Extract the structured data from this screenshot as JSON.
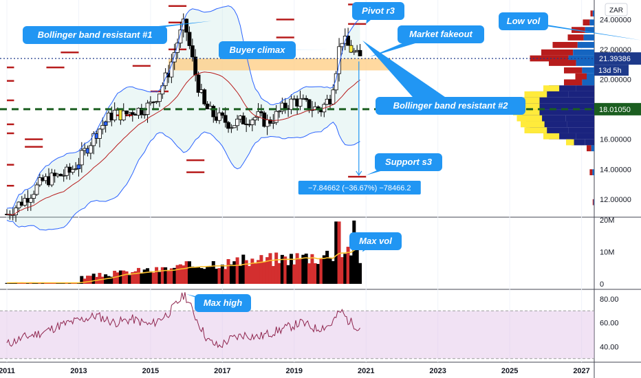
{
  "currency": "ZAR",
  "chart_data": [
    {
      "type": "line",
      "panel": "price",
      "y_ticks": [
        "24.00000",
        "22.00000",
        "20.00000",
        "18.00000",
        "16.00000",
        "14.00000",
        "12.00000"
      ],
      "y_tick_values": [
        24,
        22,
        20,
        18,
        16,
        14,
        12
      ],
      "ylim": [
        10.8,
        25.3
      ],
      "current_price": {
        "label": "21.39386",
        "value": 21.39386,
        "countdown": "13d 5h"
      },
      "poc_level": {
        "label": "18.01050",
        "value": 18.0105
      },
      "close_series": {
        "x": [
          2011.0,
          2011.25,
          2011.5,
          2011.75,
          2012.0,
          2012.25,
          2012.5,
          2012.75,
          2013.0,
          2013.25,
          2013.5,
          2013.75,
          2014.0,
          2014.25,
          2014.5,
          2014.75,
          2015.0,
          2015.25,
          2015.5,
          2015.75,
          2015.95,
          2016.1,
          2016.3,
          2016.5,
          2016.75,
          2017.0,
          2017.25,
          2017.5,
          2017.75,
          2018.0,
          2018.25,
          2018.5,
          2018.75,
          2019.0,
          2019.25,
          2019.5,
          2019.75,
          2020.0,
          2020.15,
          2020.3,
          2020.5,
          2020.65,
          2020.8
        ],
        "values": [
          11.0,
          11.5,
          12.0,
          12.6,
          13.2,
          13.4,
          13.6,
          13.8,
          14.5,
          15.5,
          16.5,
          17.2,
          17.8,
          17.6,
          17.9,
          18.0,
          18.3,
          19.2,
          20.5,
          22.5,
          23.8,
          22.0,
          19.8,
          18.2,
          17.6,
          17.3,
          17.0,
          17.2,
          17.4,
          17.5,
          17.1,
          17.6,
          18.2,
          18.6,
          18.4,
          18.1,
          18.0,
          18.8,
          20.5,
          22.8,
          22.2,
          21.8,
          21.4
        ]
      },
      "support_resistance": [
        {
          "value": 12.9,
          "x": [
            2011.0,
            2011.2
          ]
        },
        {
          "value": 14.3,
          "x": [
            2011.0,
            2011.2
          ]
        },
        {
          "value": 16.4,
          "x": [
            2011.0,
            2011.2
          ]
        },
        {
          "value": 17.0,
          "x": [
            2011.0,
            2011.2
          ]
        },
        {
          "value": 18.6,
          "x": [
            2011.0,
            2011.2
          ]
        },
        {
          "value": 19.9,
          "x": [
            2011.0,
            2011.2
          ]
        },
        {
          "value": 20.8,
          "x": [
            2011.0,
            2011.2
          ]
        },
        {
          "value": 16.0,
          "x": [
            2011.5,
            2012.0
          ]
        },
        {
          "value": 15.5,
          "x": [
            2011.5,
            2012.0
          ]
        },
        {
          "value": 20.8,
          "x": [
            2012.1,
            2012.6
          ]
        },
        {
          "value": 21.8,
          "x": [
            2012.5,
            2013.0
          ]
        },
        {
          "value": 17.6,
          "x": [
            2014.0,
            2014.5
          ]
        },
        {
          "value": 19.2,
          "x": [
            2015.0,
            2015.5
          ]
        },
        {
          "value": 20.9,
          "x": [
            2014.5,
            2015.0
          ]
        },
        {
          "value": 13.8,
          "x": [
            2016.0,
            2016.5
          ]
        },
        {
          "value": 14.6,
          "x": [
            2016.0,
            2016.5
          ]
        },
        {
          "value": 22.0,
          "x": [
            2015.5,
            2016.0
          ]
        },
        {
          "value": 23.8,
          "x": [
            2015.5,
            2016.0
          ]
        },
        {
          "value": 24.9,
          "x": [
            2015.5,
            2016.0
          ]
        },
        {
          "value": 22.8,
          "x": [
            2018.5,
            2019.0
          ]
        },
        {
          "value": 24.0,
          "x": [
            2018.5,
            2019.0
          ]
        },
        {
          "value": 25.4,
          "x": [
            2018.5,
            2019.0
          ]
        },
        {
          "value": 13.5,
          "x": [
            2020.5,
            2021.0
          ]
        },
        {
          "value": 23.7,
          "x": [
            2020.5,
            2021.0
          ]
        },
        {
          "value": 25.0,
          "x": [
            2020.5,
            2021.0
          ]
        }
      ],
      "annotations": [
        {
          "text": "Bollinger band resistant #1"
        },
        {
          "text": "Buyer climax"
        },
        {
          "text": "Pivot r3"
        },
        {
          "text": "Market fakeout"
        },
        {
          "text": "Low vol"
        },
        {
          "text": "Bollinger band resistant #2"
        },
        {
          "text": "Support s3"
        }
      ],
      "measurement": "−7.84662 (−36.67%) −78466.2"
    },
    {
      "type": "bar",
      "panel": "volume",
      "y_ticks": [
        "20M",
        "10M",
        "0"
      ],
      "y_tick_values": [
        20000000,
        10000000,
        0
      ],
      "ylim": [
        0,
        20000000
      ],
      "annotation": {
        "text": "Max vol"
      }
    },
    {
      "type": "line",
      "panel": "rsi",
      "y_ticks": [
        "80.00",
        "60.00",
        "40.00"
      ],
      "y_tick_values": [
        80,
        60,
        40
      ],
      "ylim": [
        27,
        88
      ],
      "band": [
        30,
        70
      ],
      "x": [
        2011.0,
        2011.5,
        2012.0,
        2012.5,
        2013.0,
        2013.5,
        2014.0,
        2014.5,
        2015.0,
        2015.5,
        2015.95,
        2016.3,
        2016.6,
        2016.9,
        2017.2,
        2017.6,
        2018.0,
        2018.4,
        2018.8,
        2019.2,
        2019.6,
        2020.0,
        2020.3,
        2020.5,
        2020.8
      ],
      "values": [
        42,
        48,
        52,
        58,
        62,
        66,
        60,
        63,
        58,
        68,
        84,
        62,
        45,
        40,
        46,
        50,
        48,
        52,
        56,
        60,
        55,
        58,
        70,
        62,
        56
      ],
      "annotation": {
        "text": "Max high"
      }
    }
  ],
  "x_axis": {
    "labels": [
      "2011",
      "2013",
      "2015",
      "2017",
      "2019",
      "2021",
      "2023",
      "2025",
      "2027"
    ],
    "values": [
      2011,
      2013,
      2015,
      2017,
      2019,
      2021,
      2023,
      2025,
      2027
    ]
  }
}
